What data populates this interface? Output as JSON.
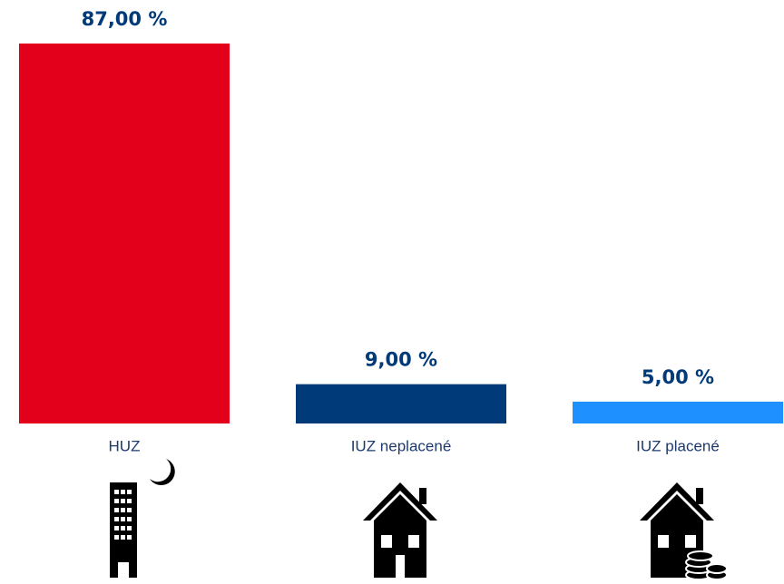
{
  "chart_data": {
    "type": "bar",
    "categories": [
      "HUZ",
      "IUZ neplacené",
      "IUZ placené"
    ],
    "values": [
      87,
      9,
      5
    ],
    "value_labels": [
      "87,00 %",
      "9,00 %",
      "5,00 %"
    ],
    "colors": [
      "#e2001a",
      "#003a78",
      "#1e90ff"
    ]
  }
}
